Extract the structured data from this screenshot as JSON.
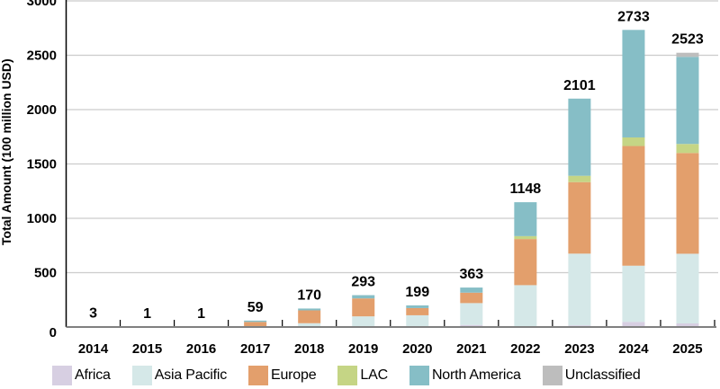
{
  "chart_data": {
    "type": "bar",
    "stacked": true,
    "title": "",
    "xlabel": "",
    "ylabel": "Total Amount (100 million USD)",
    "ylim": [
      0,
      3000
    ],
    "yticks": [
      0,
      500,
      1000,
      1500,
      2000,
      2500,
      3000
    ],
    "grid": true,
    "legend_position": "bottom",
    "categories": [
      "2014",
      "2015",
      "2016",
      "2017",
      "2018",
      "2019",
      "2020",
      "2021",
      "2022",
      "2023",
      "2024",
      "2025"
    ],
    "totals": [
      3,
      1,
      1,
      59,
      170,
      293,
      199,
      363,
      1148,
      2101,
      2733,
      2523
    ],
    "series": [
      {
        "name": "Africa",
        "color": "#d7cfe2",
        "values": [
          0,
          0,
          0,
          0,
          0,
          0,
          0,
          19,
          5,
          15,
          47,
          33
        ]
      },
      {
        "name": "Asia Pacific",
        "color": "#d5e8e8",
        "values": [
          1,
          1,
          1,
          0,
          35,
          98,
          108,
          201,
          380,
          660,
          517,
          641
        ]
      },
      {
        "name": "Europe",
        "color": "#e39f6c",
        "values": [
          2,
          0,
          0,
          47,
          118,
          165,
          66,
          96,
          424,
          658,
          1101,
          927
        ]
      },
      {
        "name": "LAC",
        "color": "#c5d585",
        "values": [
          0,
          0,
          0,
          0,
          0,
          0,
          0,
          0,
          27,
          58,
          79,
          83
        ]
      },
      {
        "name": "North America",
        "color": "#86bec6",
        "values": [
          0,
          0,
          0,
          12,
          17,
          30,
          25,
          47,
          312,
          710,
          989,
          801
        ]
      },
      {
        "name": "Unclassified",
        "color": "#bdbdbd",
        "values": [
          0,
          0,
          0,
          0,
          0,
          0,
          0,
          0,
          0,
          0,
          0,
          38
        ]
      }
    ]
  },
  "legend": {
    "items": [
      {
        "label": "Africa",
        "color": "#d7cfe2"
      },
      {
        "label": "Asia Pacific",
        "color": "#d5e8e8"
      },
      {
        "label": "Europe",
        "color": "#e39f6c"
      },
      {
        "label": "LAC",
        "color": "#c5d585"
      },
      {
        "label": "North America",
        "color": "#86bec6"
      },
      {
        "label": "Unclassified",
        "color": "#bdbdbd"
      }
    ]
  },
  "style": {
    "axis_color": "#000000",
    "baseline_color": "#808080",
    "grid_color": "#cccccc"
  }
}
